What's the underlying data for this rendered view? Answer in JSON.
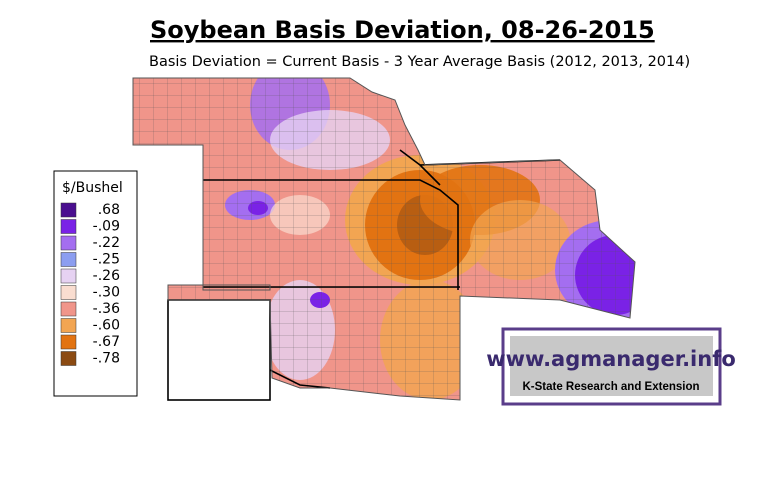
{
  "title": "Soybean Basis Deviation, 08-26-2015",
  "subtitle": "Basis Deviation = Current Basis - 3 Year Average Basis (2012, 2013, 2014)",
  "legend": {
    "title": "$/Bushel",
    "items": [
      {
        "label": ".68",
        "color": "#4a0f8f"
      },
      {
        "label": "-.09",
        "color": "#7a22e6"
      },
      {
        "label": "-.22",
        "color": "#a46ef0"
      },
      {
        "label": "-.25",
        "color": "#8c9ef0"
      },
      {
        "label": "-.26",
        "color": "#e6d2f2"
      },
      {
        "label": "-.30",
        "color": "#f9ddd0"
      },
      {
        "label": "-.36",
        "color": "#f0958a"
      },
      {
        "label": "-.60",
        "color": "#f2a552"
      },
      {
        "label": "-.67",
        "color": "#e27312"
      },
      {
        "label": "-.78",
        "color": "#8b4a12"
      }
    ]
  },
  "logo": {
    "url": "www.agmanager.info",
    "org": "K-State Research and Extension"
  }
}
